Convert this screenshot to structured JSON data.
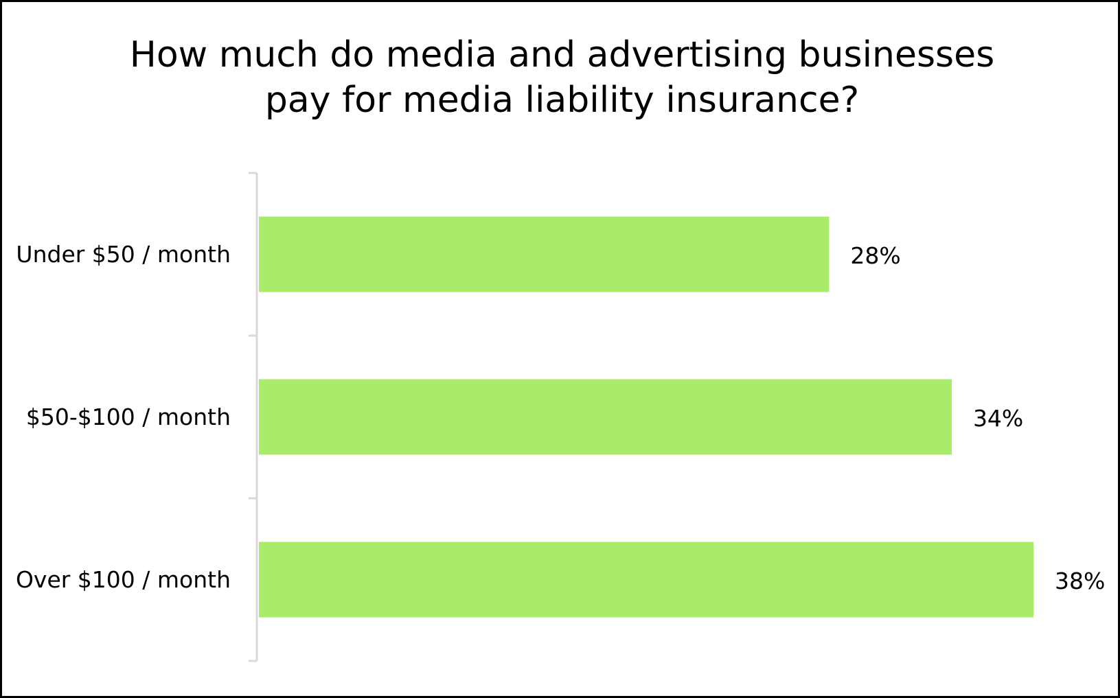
{
  "chart_data": {
    "type": "bar",
    "orientation": "horizontal",
    "title_lines": [
      "How much do media and advertising businesses",
      "pay for media liability insurance?"
    ],
    "categories": [
      "Under $50 / month",
      "$50-$100 / month",
      "Over $100 / month"
    ],
    "values": [
      28,
      34,
      38
    ],
    "value_labels": [
      "28%",
      "34%",
      "38%"
    ],
    "unit": "%",
    "xlim": [
      0,
      38
    ],
    "grid": false,
    "legend": "none",
    "colors": {
      "bar": "#a9eb6b",
      "axis": "#d9d9d9",
      "border": "#000000",
      "text": "#000000"
    }
  }
}
